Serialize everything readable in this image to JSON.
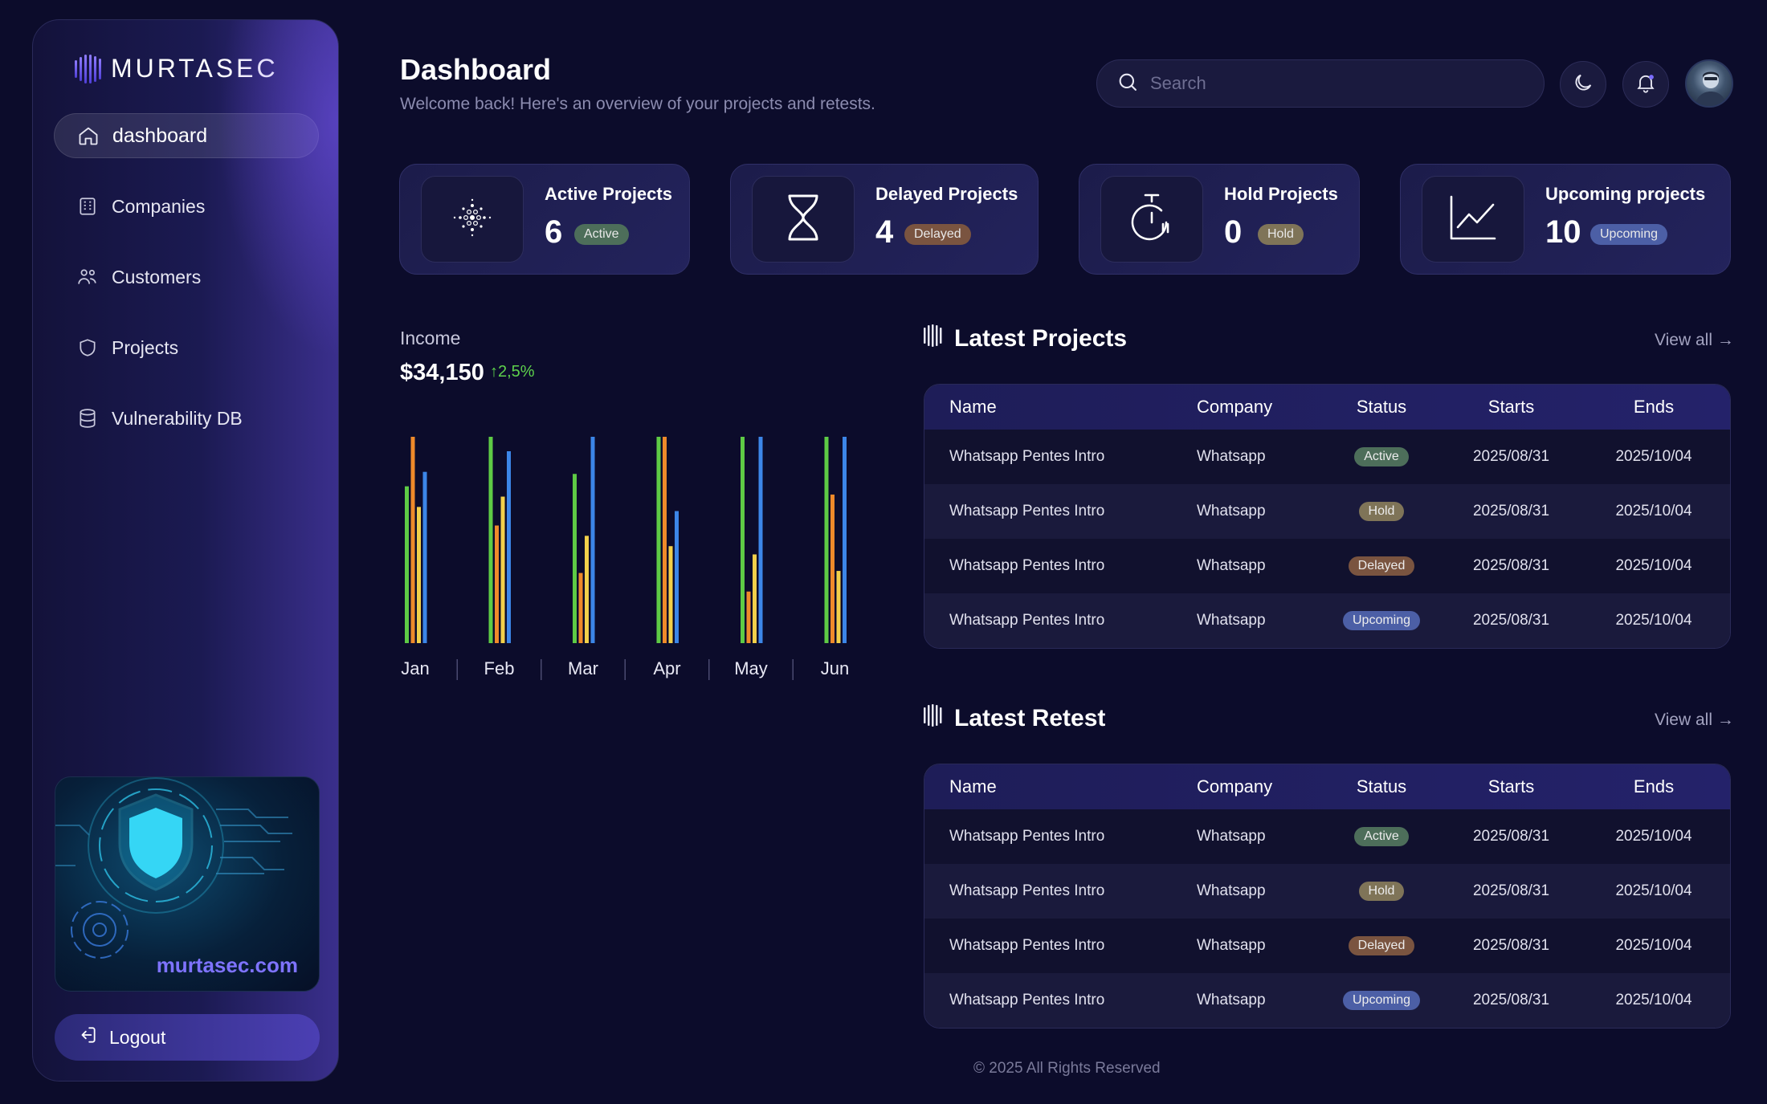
{
  "brand": {
    "name": "MURTASEC",
    "domain": "murtasec.com"
  },
  "sidebar": {
    "items": [
      {
        "label": "dashboard",
        "icon": "home-icon",
        "active": true
      },
      {
        "label": "Companies",
        "icon": "building-icon",
        "active": false
      },
      {
        "label": "Customers",
        "icon": "users-icon",
        "active": false
      },
      {
        "label": "Projects",
        "icon": "shield-icon",
        "active": false
      },
      {
        "label": "Vulnerability DB",
        "icon": "database-icon",
        "active": false
      }
    ],
    "logout_label": "Logout"
  },
  "header": {
    "title": "Dashboard",
    "subtitle": "Welcome back! Here's an overview of your projects and retests.",
    "search_placeholder": "Search"
  },
  "stats": [
    {
      "label": "Active Projects",
      "value": "6",
      "badge": "Active",
      "badge_color": "#4d6e5a",
      "icon": "cardano-dots-icon"
    },
    {
      "label": "Delayed Projects",
      "value": "4",
      "badge": "Delayed",
      "badge_color": "#7a5440",
      "icon": "hourglass-icon"
    },
    {
      "label": "Hold Projects",
      "value": "0",
      "badge": "Hold",
      "badge_color": "#7f7458",
      "icon": "stopwatch-icon"
    },
    {
      "label": "Upcoming projects",
      "value": "10",
      "badge": "Upcoming",
      "badge_color": "#4c5fa6",
      "icon": "line-chart-icon"
    }
  ],
  "income": {
    "label": "Income",
    "value": "$34,150",
    "change": "2,5%"
  },
  "chart_data": {
    "type": "bar",
    "categories": [
      "Jan",
      "Feb",
      "Mar",
      "Apr",
      "May",
      "Jun"
    ],
    "series": [
      {
        "color": "#5ecb45",
        "values": [
          76,
          100,
          82,
          100,
          100,
          100
        ]
      },
      {
        "color": "#ef8a2a",
        "values": [
          100,
          57,
          34,
          100,
          25,
          72
        ]
      },
      {
        "color": "#f2d04a",
        "values": [
          66,
          71,
          52,
          47,
          43,
          35
        ]
      },
      {
        "color": "#3c86e8",
        "values": [
          83,
          93,
          100,
          64,
          100,
          100
        ]
      }
    ],
    "ylim": [
      0,
      100
    ],
    "grid": false
  },
  "latest_projects": {
    "title": "Latest Projects",
    "view_all": "View all →",
    "columns": [
      "Name",
      "Company",
      "Status",
      "Starts",
      "Ends"
    ],
    "rows": [
      {
        "name": "Whatsapp Pentes Intro",
        "company": "Whatsapp",
        "status": "Active",
        "status_color": "#4d6e5a",
        "starts": "2025/08/31",
        "ends": "2025/10/04"
      },
      {
        "name": "Whatsapp Pentes Intro",
        "company": "Whatsapp",
        "status": "Hold",
        "status_color": "#7f7458",
        "starts": "2025/08/31",
        "ends": "2025/10/04"
      },
      {
        "name": "Whatsapp Pentes Intro",
        "company": "Whatsapp",
        "status": "Delayed",
        "status_color": "#7a5440",
        "starts": "2025/08/31",
        "ends": "2025/10/04"
      },
      {
        "name": "Whatsapp Pentes Intro",
        "company": "Whatsapp",
        "status": "Upcoming",
        "status_color": "#4c5fa6",
        "starts": "2025/08/31",
        "ends": "2025/10/04"
      }
    ]
  },
  "latest_retest": {
    "title": "Latest Retest",
    "view_all": "View all →",
    "columns": [
      "Name",
      "Company",
      "Status",
      "Starts",
      "Ends"
    ],
    "rows": [
      {
        "name": "Whatsapp Pentes Intro",
        "company": "Whatsapp",
        "status": "Active",
        "status_color": "#4d6e5a",
        "starts": "2025/08/31",
        "ends": "2025/10/04"
      },
      {
        "name": "Whatsapp Pentes Intro",
        "company": "Whatsapp",
        "status": "Hold",
        "status_color": "#7f7458",
        "starts": "2025/08/31",
        "ends": "2025/10/04"
      },
      {
        "name": "Whatsapp Pentes Intro",
        "company": "Whatsapp",
        "status": "Delayed",
        "status_color": "#7a5440",
        "starts": "2025/08/31",
        "ends": "2025/10/04"
      },
      {
        "name": "Whatsapp Pentes Intro",
        "company": "Whatsapp",
        "status": "Upcoming",
        "status_color": "#4c5fa6",
        "starts": "2025/08/31",
        "ends": "2025/10/04"
      }
    ]
  },
  "footer": "© 2025 All Rights Reserved"
}
